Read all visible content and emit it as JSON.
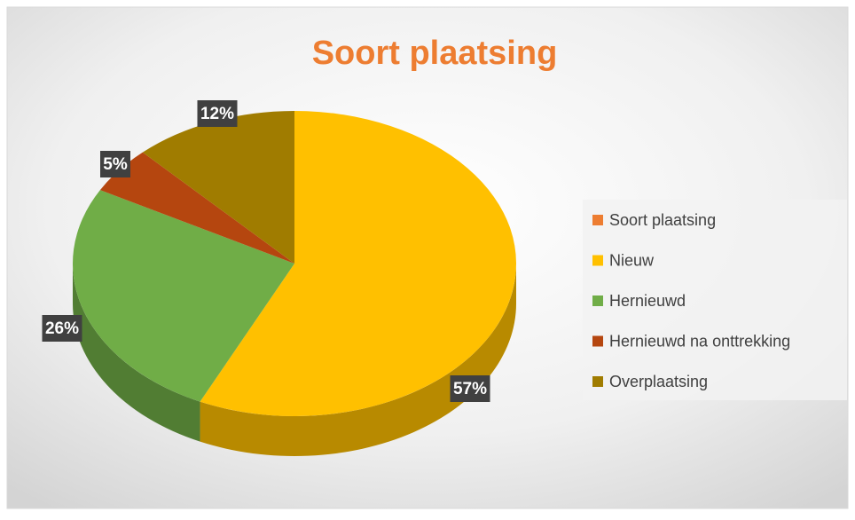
{
  "chart_data": {
    "type": "pie",
    "title": "Soort plaatsing",
    "categories": [
      "Soort plaatsing",
      "Nieuw",
      "Hernieuwd",
      "Hernieuwd na onttrekking",
      "Overplaatsing"
    ],
    "values": [
      null,
      57,
      26,
      5,
      12
    ],
    "value_labels": [
      null,
      "57%",
      "26%",
      "5%",
      "12%"
    ],
    "colors": [
      "#ed7d31",
      "#ffc000",
      "#70ad47",
      "#b5460f",
      "#a07c00"
    ],
    "legend": "right"
  }
}
